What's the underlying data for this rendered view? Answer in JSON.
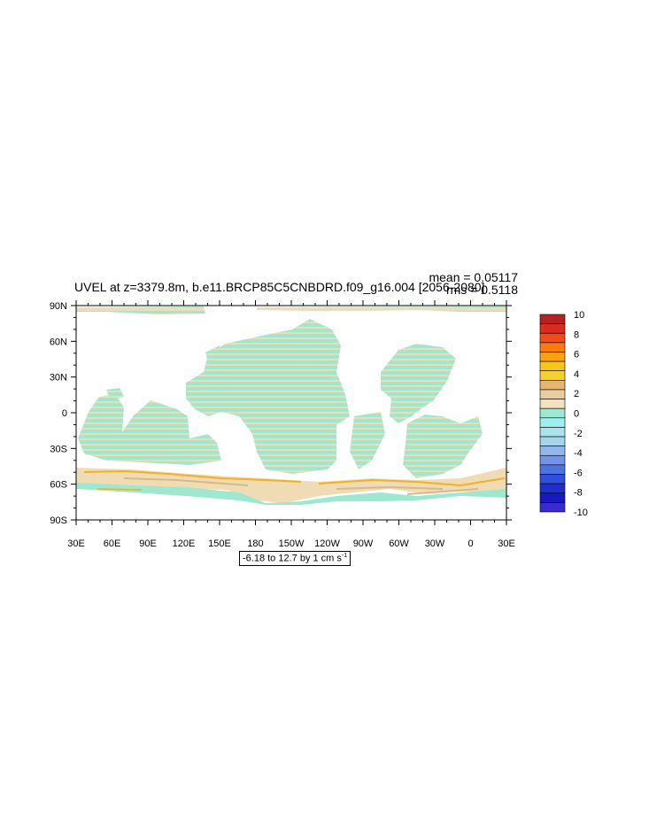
{
  "title": "UVEL at z=3379.8m, b.e11.BRCP85C5CNBDRD.f09_g16.004 [2056-2080]",
  "stats": {
    "mean": "mean = 0.05117",
    "rms": "rms = 0.5118"
  },
  "range_label": {
    "text": "-6.18 to 12.7 by 1 cm s",
    "sup": "-1"
  },
  "map": {
    "lat_labels": [
      "90N",
      "60N",
      "30N",
      "0",
      "30S",
      "60S",
      "90S"
    ],
    "lon_labels": [
      "30E",
      "60E",
      "90E",
      "120E",
      "150E",
      "180",
      "150W",
      "120W",
      "90W",
      "60W",
      "30W",
      "0",
      "30E"
    ]
  },
  "colorbar": {
    "labels": [
      "10",
      "8",
      "6",
      "4",
      "2",
      "0",
      "-2",
      "-4",
      "-6",
      "-8",
      "-10"
    ],
    "colors": [
      "#b22222",
      "#dd2a1e",
      "#f34a1c",
      "#fb7a12",
      "#fda20c",
      "#fbc515",
      "#f5d22a",
      "#e3b772",
      "#e9cca0",
      "#f1e2bd",
      "#9ee8cf",
      "#9ef0f0",
      "#a8e4ea",
      "#a6d4ec",
      "#92b7eb",
      "#6f94e8",
      "#4d73e2",
      "#2f4fdc",
      "#1e2fd2",
      "#1818c0",
      "#3a2ad1"
    ]
  },
  "field_colors": {
    "teal": "#9ee8cf",
    "tan": "#efdcb4",
    "brown": "#d8b888",
    "orange": "#f2b022"
  }
}
